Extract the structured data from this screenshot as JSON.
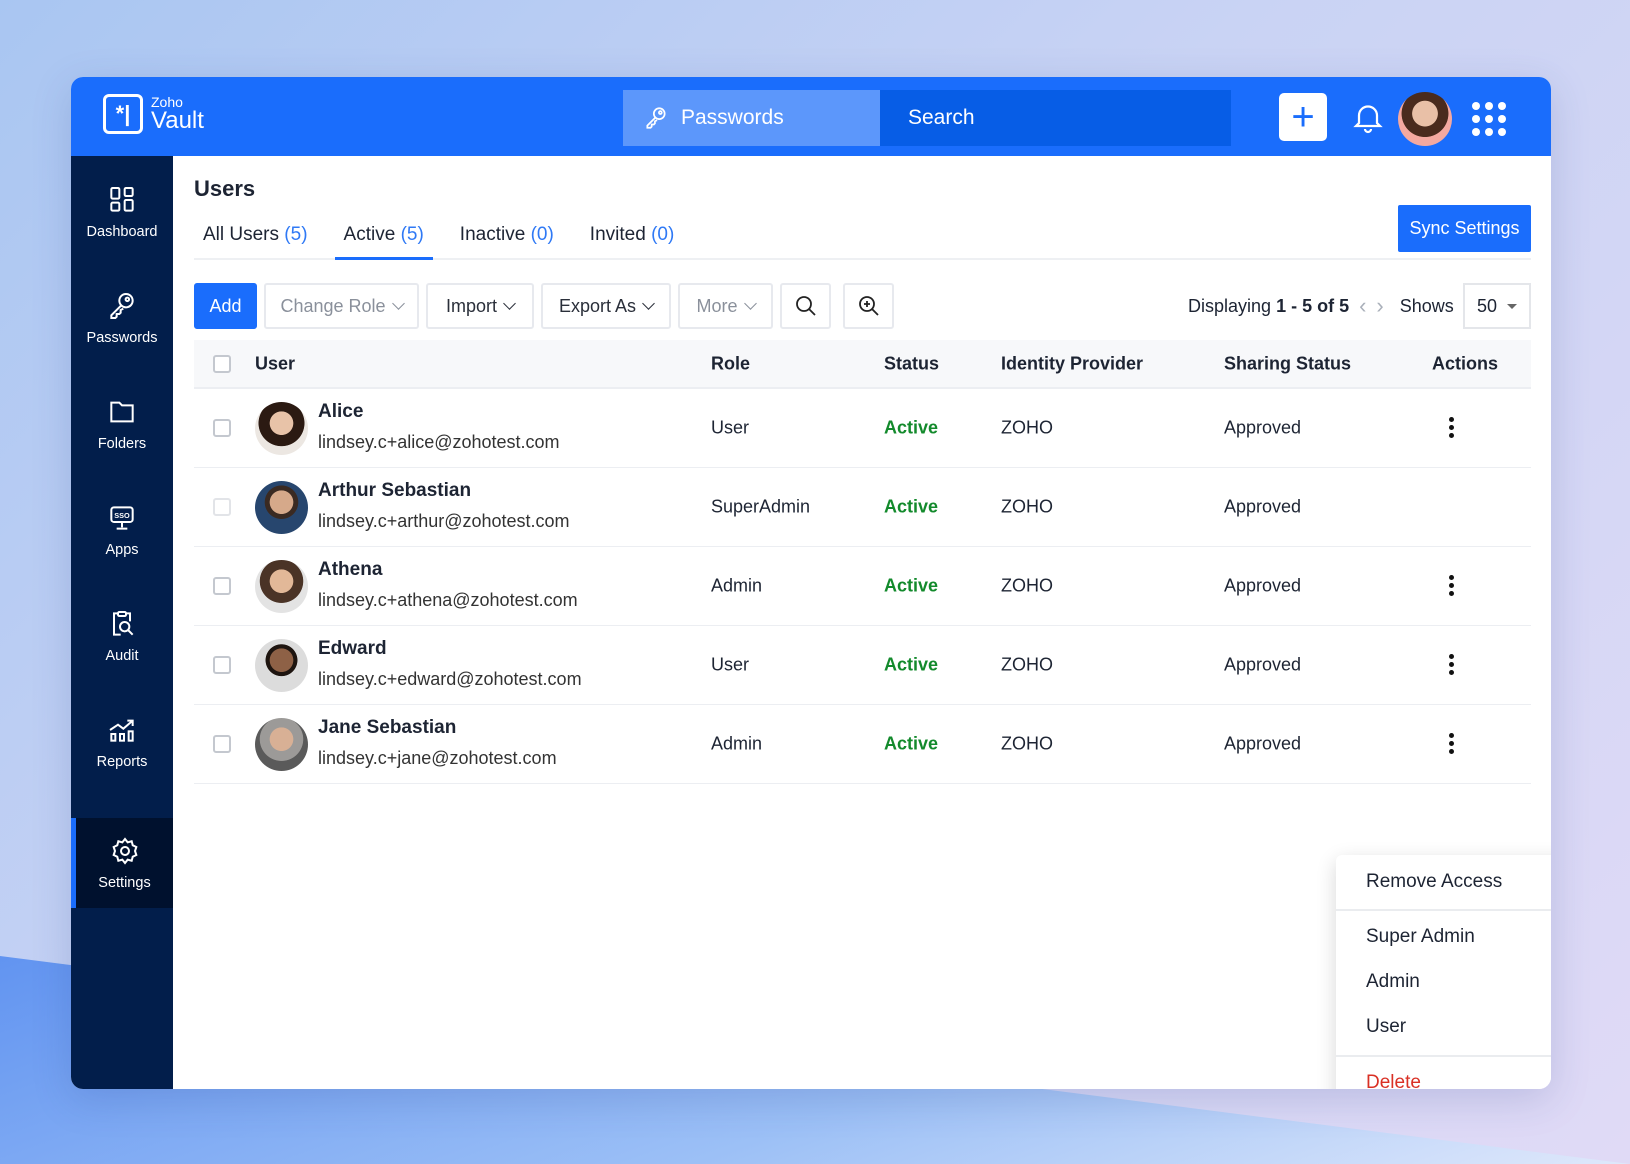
{
  "header": {
    "logo_small": "Zoho",
    "logo_big": "Vault",
    "tab": "Passwords",
    "search_placeholder": "Search",
    "add_icon": "plus-icon",
    "bell_icon": "bell-icon",
    "apps_icon": "grid-icon"
  },
  "sidebar": {
    "items": [
      {
        "label": "Dashboard",
        "icon": "dashboard-icon"
      },
      {
        "label": "Passwords",
        "icon": "key-icon"
      },
      {
        "label": "Folders",
        "icon": "folder-icon"
      },
      {
        "label": "Apps",
        "icon": "sso-icon"
      },
      {
        "label": "Audit",
        "icon": "audit-icon"
      },
      {
        "label": "Reports",
        "icon": "reports-icon"
      },
      {
        "label": "Settings",
        "icon": "gear-icon",
        "active": true
      }
    ]
  },
  "page": {
    "title": "Users",
    "sync_label": "Sync Settings"
  },
  "tabs": [
    {
      "label": "All Users",
      "count": "(5)"
    },
    {
      "label": "Active",
      "count": "(5)",
      "active": true
    },
    {
      "label": "Inactive",
      "count": "(0)"
    },
    {
      "label": "Invited",
      "count": "(0)"
    }
  ],
  "toolbar": {
    "add": "Add",
    "change_role": "Change Role",
    "import": "Import",
    "export": "Export As",
    "more": "More",
    "displaying_prefix": "Displaying",
    "displaying_range": "1 - 5 of 5",
    "shows_label": "Shows",
    "shows_value": "50"
  },
  "table": {
    "columns": [
      "User",
      "Role",
      "Status",
      "Identity Provider",
      "Sharing Status",
      "Actions"
    ],
    "rows": [
      {
        "name": "Alice",
        "email": "lindsey.c+alice@zohotest.com",
        "role": "User",
        "status": "Active",
        "idp": "ZOHO",
        "sharing": "Approved",
        "actions": true
      },
      {
        "name": "Arthur Sebastian",
        "email": "lindsey.c+arthur@zohotest.com",
        "role": "SuperAdmin",
        "status": "Active",
        "idp": "ZOHO",
        "sharing": "Approved",
        "actions": false
      },
      {
        "name": "Athena",
        "email": "lindsey.c+athena@zohotest.com",
        "role": "Admin",
        "status": "Active",
        "idp": "ZOHO",
        "sharing": "Approved",
        "actions": true
      },
      {
        "name": "Edward",
        "email": "lindsey.c+edward@zohotest.com",
        "role": "User",
        "status": "Active",
        "idp": "ZOHO",
        "sharing": "Approved",
        "actions": true
      },
      {
        "name": "Jane Sebastian",
        "email": "lindsey.c+jane@zohotest.com",
        "role": "Admin",
        "status": "Active",
        "idp": "ZOHO",
        "sharing": "Approved",
        "actions": true
      }
    ]
  },
  "menu": {
    "remove": "Remove Access",
    "super_admin": "Super Admin",
    "admin": "Admin",
    "user": "User",
    "delete": "Delete"
  },
  "colors": {
    "brand": "#1a6dfc",
    "sidebar": "#021e4b",
    "active_status": "#138a2c",
    "delete": "#d93025"
  }
}
